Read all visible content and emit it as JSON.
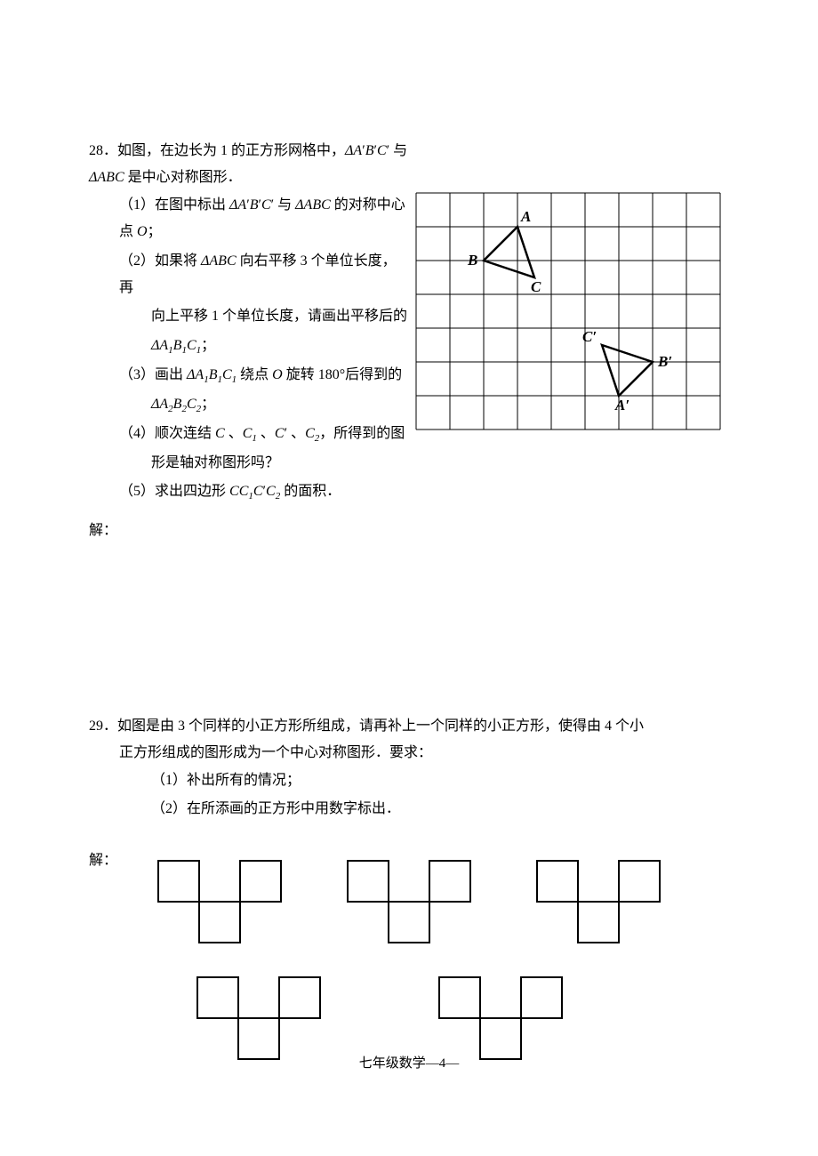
{
  "problem28": {
    "number": "28．",
    "intro_a": "如图，在边长为 1 的正方形网格中，",
    "intro_b": " 与 ",
    "intro_c": " 是中心对称图形．",
    "tri1": "△A′B′C′",
    "tri2": "△ABC",
    "sub1_a": "（1）在图中标出 ",
    "sub1_b": " 与 ",
    "sub1_c": " 的对称中心点 ",
    "sub1_d": "；",
    "pointO": "O",
    "sub2_a": "（2）如果将 ",
    "sub2_b": " 向右平移 3 个单位长度，再",
    "sub2_c": "向上平移 1 个单位长度，请画出平移后的",
    "sub2_d": "；",
    "tri_a1b1c1": "△A₁B₁C₁",
    "sub3_a": "（3）画出 ",
    "sub3_b": " 绕点 ",
    "sub3_c": " 旋转 180°后得到的",
    "sub3_d": "；",
    "tri_a2b2c2": "△A₂B₂C₂",
    "sub4_a": "（4）顺次连结 ",
    "sub4_b": " 、",
    "sub4_c": " 、",
    "sub4_d": " 、",
    "sub4_e": "，所得到的图",
    "sub4_f": "形是轴对称图形吗？",
    "ptC": "C",
    "ptC1": "C₁",
    "ptCp": "C′",
    "ptC2": "C₂",
    "sub5_a": "（5）求出四边形 ",
    "sub5_b": " 的面积．",
    "quad": "CC₁C′C₂",
    "answer": "解：",
    "grid": {
      "cols": 9,
      "rows": 7,
      "cell": 38,
      "stroke": "#000000",
      "stroke_width": 1,
      "triangle1": {
        "points": [
          [
            3,
            1
          ],
          [
            2,
            2
          ],
          [
            3.5,
            2.5
          ]
        ],
        "labels": {
          "A": [
            3,
            1
          ],
          "B": [
            2,
            2
          ],
          "C": [
            3.5,
            2.5
          ]
        },
        "label_pos": {
          "A": "above",
          "B": "left",
          "C": "below"
        }
      },
      "triangle2": {
        "points": [
          [
            5.5,
            4.5
          ],
          [
            7,
            5
          ],
          [
            6,
            6
          ]
        ],
        "labels": {
          "C′": [
            5.5,
            4.5
          ],
          "B′": [
            7,
            5
          ],
          "A′": [
            6,
            6
          ]
        },
        "label_pos": {
          "C′": "above-left",
          "B′": "right",
          "A′": "below"
        }
      }
    }
  },
  "problem29": {
    "number": "29．",
    "line1": "如图是由 3 个同样的小正方形所组成，请再补上一个同样的小正方形，使得由 4 个小",
    "line2": "正方形组成的图形成为一个中心对称图形．要求：",
    "sub1": "（1）补出所有的情况；",
    "sub2": "（2）在所添画的正方形中用数字标出．",
    "answer": "解：",
    "shape": {
      "cell": 46,
      "stroke": "#000000",
      "stroke_width": 2,
      "squares": [
        [
          0,
          0
        ],
        [
          2,
          0
        ],
        [
          1,
          1
        ]
      ]
    },
    "shape_count_row1": 3,
    "shape_count_row2": 2
  },
  "footer": "七年级数学—4—"
}
